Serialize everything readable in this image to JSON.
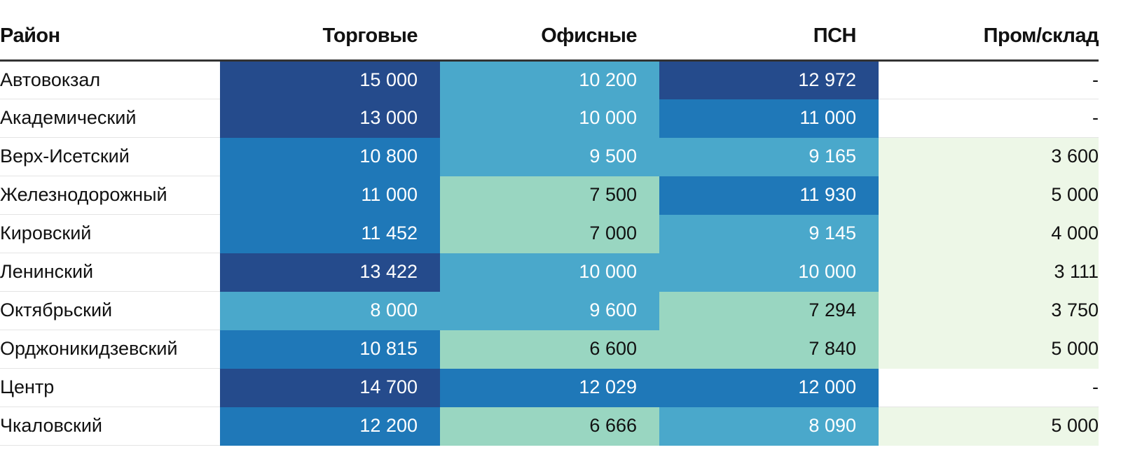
{
  "chart_data": {
    "type": "table",
    "title": "",
    "columns": [
      "Район",
      "Торговые",
      "Офисные",
      "ПСН",
      "Пром/склад"
    ],
    "rows": [
      {
        "district": "Автовокзал",
        "values": [
          "15 000",
          "10 200",
          "12 972",
          "-"
        ],
        "colors": [
          "#254b8c",
          "#4aa8cb",
          "#254b8c",
          "#ffffff"
        ],
        "text_colors": [
          "#ffffff",
          "#ffffff",
          "#ffffff",
          "#111111"
        ]
      },
      {
        "district": "Академический",
        "values": [
          "13 000",
          "10 000",
          "11 000",
          "-"
        ],
        "colors": [
          "#254b8c",
          "#4aa8cb",
          "#1f78b8",
          "#ffffff"
        ],
        "text_colors": [
          "#ffffff",
          "#ffffff",
          "#ffffff",
          "#111111"
        ]
      },
      {
        "district": "Верх-Исетский",
        "values": [
          "10 800",
          "9 500",
          "9 165",
          "3 600"
        ],
        "colors": [
          "#1f78b8",
          "#4aa8cb",
          "#4aa8cb",
          "#edf7e7"
        ],
        "text_colors": [
          "#ffffff",
          "#ffffff",
          "#ffffff",
          "#111111"
        ]
      },
      {
        "district": "Железнодорожный",
        "values": [
          "11 000",
          "7 500",
          "11 930",
          "5 000"
        ],
        "colors": [
          "#1f78b8",
          "#99d6c1",
          "#1f78b8",
          "#edf7e7"
        ],
        "text_colors": [
          "#ffffff",
          "#111111",
          "#ffffff",
          "#111111"
        ]
      },
      {
        "district": "Кировский",
        "values": [
          "11 452",
          "7 000",
          "9 145",
          "4 000"
        ],
        "colors": [
          "#1f78b8",
          "#99d6c1",
          "#4aa8cb",
          "#edf7e7"
        ],
        "text_colors": [
          "#ffffff",
          "#111111",
          "#ffffff",
          "#111111"
        ]
      },
      {
        "district": "Ленинский",
        "values": [
          "13 422",
          "10 000",
          "10 000",
          "3 111"
        ],
        "colors": [
          "#254b8c",
          "#4aa8cb",
          "#4aa8cb",
          "#edf7e7"
        ],
        "text_colors": [
          "#ffffff",
          "#ffffff",
          "#ffffff",
          "#111111"
        ]
      },
      {
        "district": "Октябрьский",
        "values": [
          "8 000",
          "9 600",
          "7 294",
          "3 750"
        ],
        "colors": [
          "#4aa8cb",
          "#4aa8cb",
          "#99d6c1",
          "#edf7e7"
        ],
        "text_colors": [
          "#ffffff",
          "#ffffff",
          "#111111",
          "#111111"
        ]
      },
      {
        "district": "Орджоникидзевский",
        "values": [
          "10 815",
          "6 600",
          "7 840",
          "5 000"
        ],
        "colors": [
          "#1f78b8",
          "#99d6c1",
          "#99d6c1",
          "#edf7e7"
        ],
        "text_colors": [
          "#ffffff",
          "#111111",
          "#111111",
          "#111111"
        ]
      },
      {
        "district": "Центр",
        "values": [
          "14 700",
          "12 029",
          "12 000",
          "-"
        ],
        "colors": [
          "#254b8c",
          "#1f78b8",
          "#1f78b8",
          "#ffffff"
        ],
        "text_colors": [
          "#ffffff",
          "#ffffff",
          "#ffffff",
          "#111111"
        ]
      },
      {
        "district": "Чкаловский",
        "values": [
          "12 200",
          "6 666",
          "8 090",
          "5 000"
        ],
        "colors": [
          "#1f78b8",
          "#99d6c1",
          "#4aa8cb",
          "#edf7e7"
        ],
        "text_colors": [
          "#ffffff",
          "#111111",
          "#ffffff",
          "#111111"
        ]
      }
    ]
  }
}
